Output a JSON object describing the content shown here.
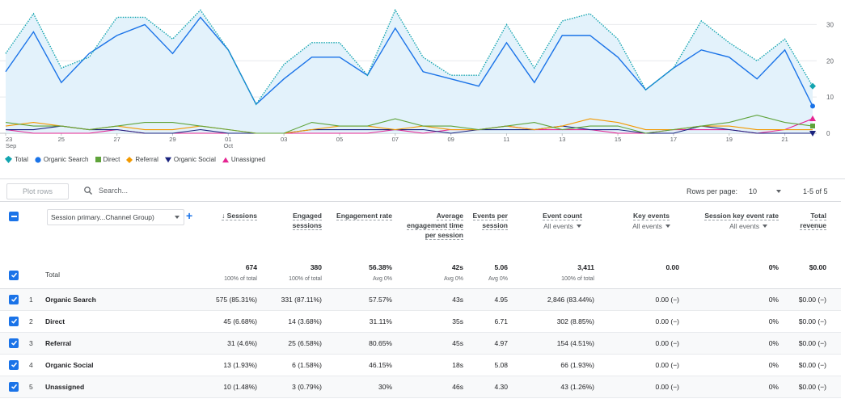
{
  "chart_data": {
    "type": "line",
    "x_ticks": [
      {
        "label": "23",
        "sub": "Sep"
      },
      {
        "label": "25",
        "sub": ""
      },
      {
        "label": "27",
        "sub": ""
      },
      {
        "label": "29",
        "sub": ""
      },
      {
        "label": "01",
        "sub": "Oct"
      },
      {
        "label": "03",
        "sub": ""
      },
      {
        "label": "05",
        "sub": ""
      },
      {
        "label": "07",
        "sub": ""
      },
      {
        "label": "09",
        "sub": ""
      },
      {
        "label": "11",
        "sub": ""
      },
      {
        "label": "13",
        "sub": ""
      },
      {
        "label": "15",
        "sub": ""
      },
      {
        "label": "17",
        "sub": ""
      },
      {
        "label": "19",
        "sub": ""
      },
      {
        "label": "21",
        "sub": ""
      }
    ],
    "y_ticks": [
      "0",
      "10",
      "20",
      "30"
    ],
    "ylim": [
      0,
      35
    ],
    "series": [
      {
        "name": "Total",
        "color": "#12a4af",
        "style": "dotted",
        "values": [
          22,
          33,
          18,
          21,
          32,
          32,
          26,
          34,
          23,
          8,
          19,
          25,
          25,
          16,
          34,
          21,
          16,
          16,
          30,
          18,
          31,
          33,
          26,
          12,
          18,
          31,
          25,
          20,
          26,
          13
        ]
      },
      {
        "name": "Organic Search",
        "color": "#1a73e8",
        "style": "solid",
        "values": [
          17,
          28,
          14,
          22,
          27,
          30,
          22,
          32,
          23,
          8,
          15,
          21,
          21,
          16,
          29,
          17,
          15,
          13,
          25,
          14,
          27,
          27,
          21,
          12,
          18,
          23,
          21,
          15,
          23,
          7.5
        ]
      },
      {
        "name": "Direct",
        "color": "#5fa33a",
        "style": "solid",
        "values": [
          3,
          2,
          2,
          1,
          2,
          3,
          3,
          2,
          1,
          0,
          0,
          3,
          2,
          2,
          4,
          2,
          2,
          1,
          2,
          3,
          1,
          2,
          2,
          0,
          1,
          2,
          3,
          5,
          3,
          2
        ]
      },
      {
        "name": "Referral",
        "color": "#f29900",
        "style": "solid",
        "values": [
          2,
          3,
          2,
          1,
          2,
          1,
          1,
          2,
          1,
          0,
          0,
          1,
          2,
          2,
          1,
          2,
          1,
          1,
          2,
          1,
          2,
          4,
          3,
          1,
          1,
          2,
          2,
          1,
          1,
          1
        ]
      },
      {
        "name": "Organic Social",
        "color": "#1a237e",
        "style": "solid",
        "values": [
          1,
          1,
          2,
          1,
          1,
          0,
          0,
          1,
          0,
          0,
          0,
          1,
          1,
          1,
          1,
          1,
          0,
          1,
          1,
          1,
          2,
          1,
          1,
          0,
          0,
          2,
          1,
          0,
          0,
          0
        ]
      },
      {
        "name": "Unassigned",
        "color": "#e52592",
        "style": "solid",
        "values": [
          1,
          0,
          0,
          0,
          1,
          0,
          0,
          0,
          0,
          0,
          0,
          0,
          0,
          0,
          1,
          0,
          1,
          1,
          2,
          1,
          1,
          1,
          0,
          0,
          1,
          1,
          1,
          0,
          1,
          4
        ]
      }
    ]
  },
  "legend": [
    {
      "label": "Total",
      "color": "#12a4af",
      "icon": "diamond-pin-icon"
    },
    {
      "label": "Organic Search",
      "color": "#1a73e8",
      "icon": "circle-icon"
    },
    {
      "label": "Direct",
      "color": "#5fa33a",
      "icon": "square-icon"
    },
    {
      "label": "Referral",
      "color": "#f29900",
      "icon": "diamond-icon"
    },
    {
      "label": "Organic Social",
      "color": "#1a237e",
      "icon": "triangle-down-icon"
    },
    {
      "label": "Unassigned",
      "color": "#e52592",
      "icon": "triangle-up-icon"
    }
  ],
  "toolbar": {
    "plot_rows": "Plot rows",
    "search_placeholder": "Search...",
    "rows_per_page_label": "Rows per page:",
    "rows_per_page_value": "10",
    "page_range": "1-5 of 5"
  },
  "table": {
    "dimension_select": "Session primary...Channel Group)",
    "headers": {
      "sessions": "↓ Sessions",
      "engaged_sessions": "Engaged sessions",
      "engagement_rate": "Engagement rate",
      "avg_engagement_time": "Average engagement time per session",
      "events_per_session": "Events per session",
      "event_count": "Event count",
      "event_count_sub": "All events",
      "key_events": "Key events",
      "key_events_sub": "All events",
      "session_key_event_rate": "Session key event rate",
      "session_key_event_rate_sub": "All events",
      "total_revenue": "Total revenue"
    },
    "total": {
      "label": "Total",
      "sessions": "674",
      "sessions_sub": "100% of total",
      "engaged_sessions": "380",
      "engaged_sessions_sub": "100% of total",
      "engagement_rate": "56.38%",
      "engagement_rate_sub": "Avg 0%",
      "avg_engagement_time": "42s",
      "avg_engagement_time_sub": "Avg 0%",
      "events_per_session": "5.06",
      "events_per_session_sub": "Avg 0%",
      "event_count": "3,411",
      "event_count_sub": "100% of total",
      "key_events": "0.00",
      "session_key_event_rate": "0%",
      "total_revenue": "$0.00"
    },
    "rows": [
      {
        "idx": "1",
        "name": "Organic Search",
        "sessions": "575 (85.31%)",
        "engaged_sessions": "331 (87.11%)",
        "engagement_rate": "57.57%",
        "avg_engagement_time": "43s",
        "events_per_session": "4.95",
        "event_count": "2,846 (83.44%)",
        "key_events": "0.00 (−)",
        "session_key_event_rate": "0%",
        "total_revenue": "$0.00 (−)"
      },
      {
        "idx": "2",
        "name": "Direct",
        "sessions": "45 (6.68%)",
        "engaged_sessions": "14 (3.68%)",
        "engagement_rate": "31.11%",
        "avg_engagement_time": "35s",
        "events_per_session": "6.71",
        "event_count": "302 (8.85%)",
        "key_events": "0.00 (−)",
        "session_key_event_rate": "0%",
        "total_revenue": "$0.00 (−)"
      },
      {
        "idx": "3",
        "name": "Referral",
        "sessions": "31 (4.6%)",
        "engaged_sessions": "25 (6.58%)",
        "engagement_rate": "80.65%",
        "avg_engagement_time": "45s",
        "events_per_session": "4.97",
        "event_count": "154 (4.51%)",
        "key_events": "0.00 (−)",
        "session_key_event_rate": "0%",
        "total_revenue": "$0.00 (−)"
      },
      {
        "idx": "4",
        "name": "Organic Social",
        "sessions": "13 (1.93%)",
        "engaged_sessions": "6 (1.58%)",
        "engagement_rate": "46.15%",
        "avg_engagement_time": "18s",
        "events_per_session": "5.08",
        "event_count": "66 (1.93%)",
        "key_events": "0.00 (−)",
        "session_key_event_rate": "0%",
        "total_revenue": "$0.00 (−)"
      },
      {
        "idx": "5",
        "name": "Unassigned",
        "sessions": "10 (1.48%)",
        "engaged_sessions": "3 (0.79%)",
        "engagement_rate": "30%",
        "avg_engagement_time": "46s",
        "events_per_session": "4.30",
        "event_count": "43 (1.26%)",
        "key_events": "0.00 (−)",
        "session_key_event_rate": "0%",
        "total_revenue": "$0.00 (−)"
      }
    ]
  }
}
